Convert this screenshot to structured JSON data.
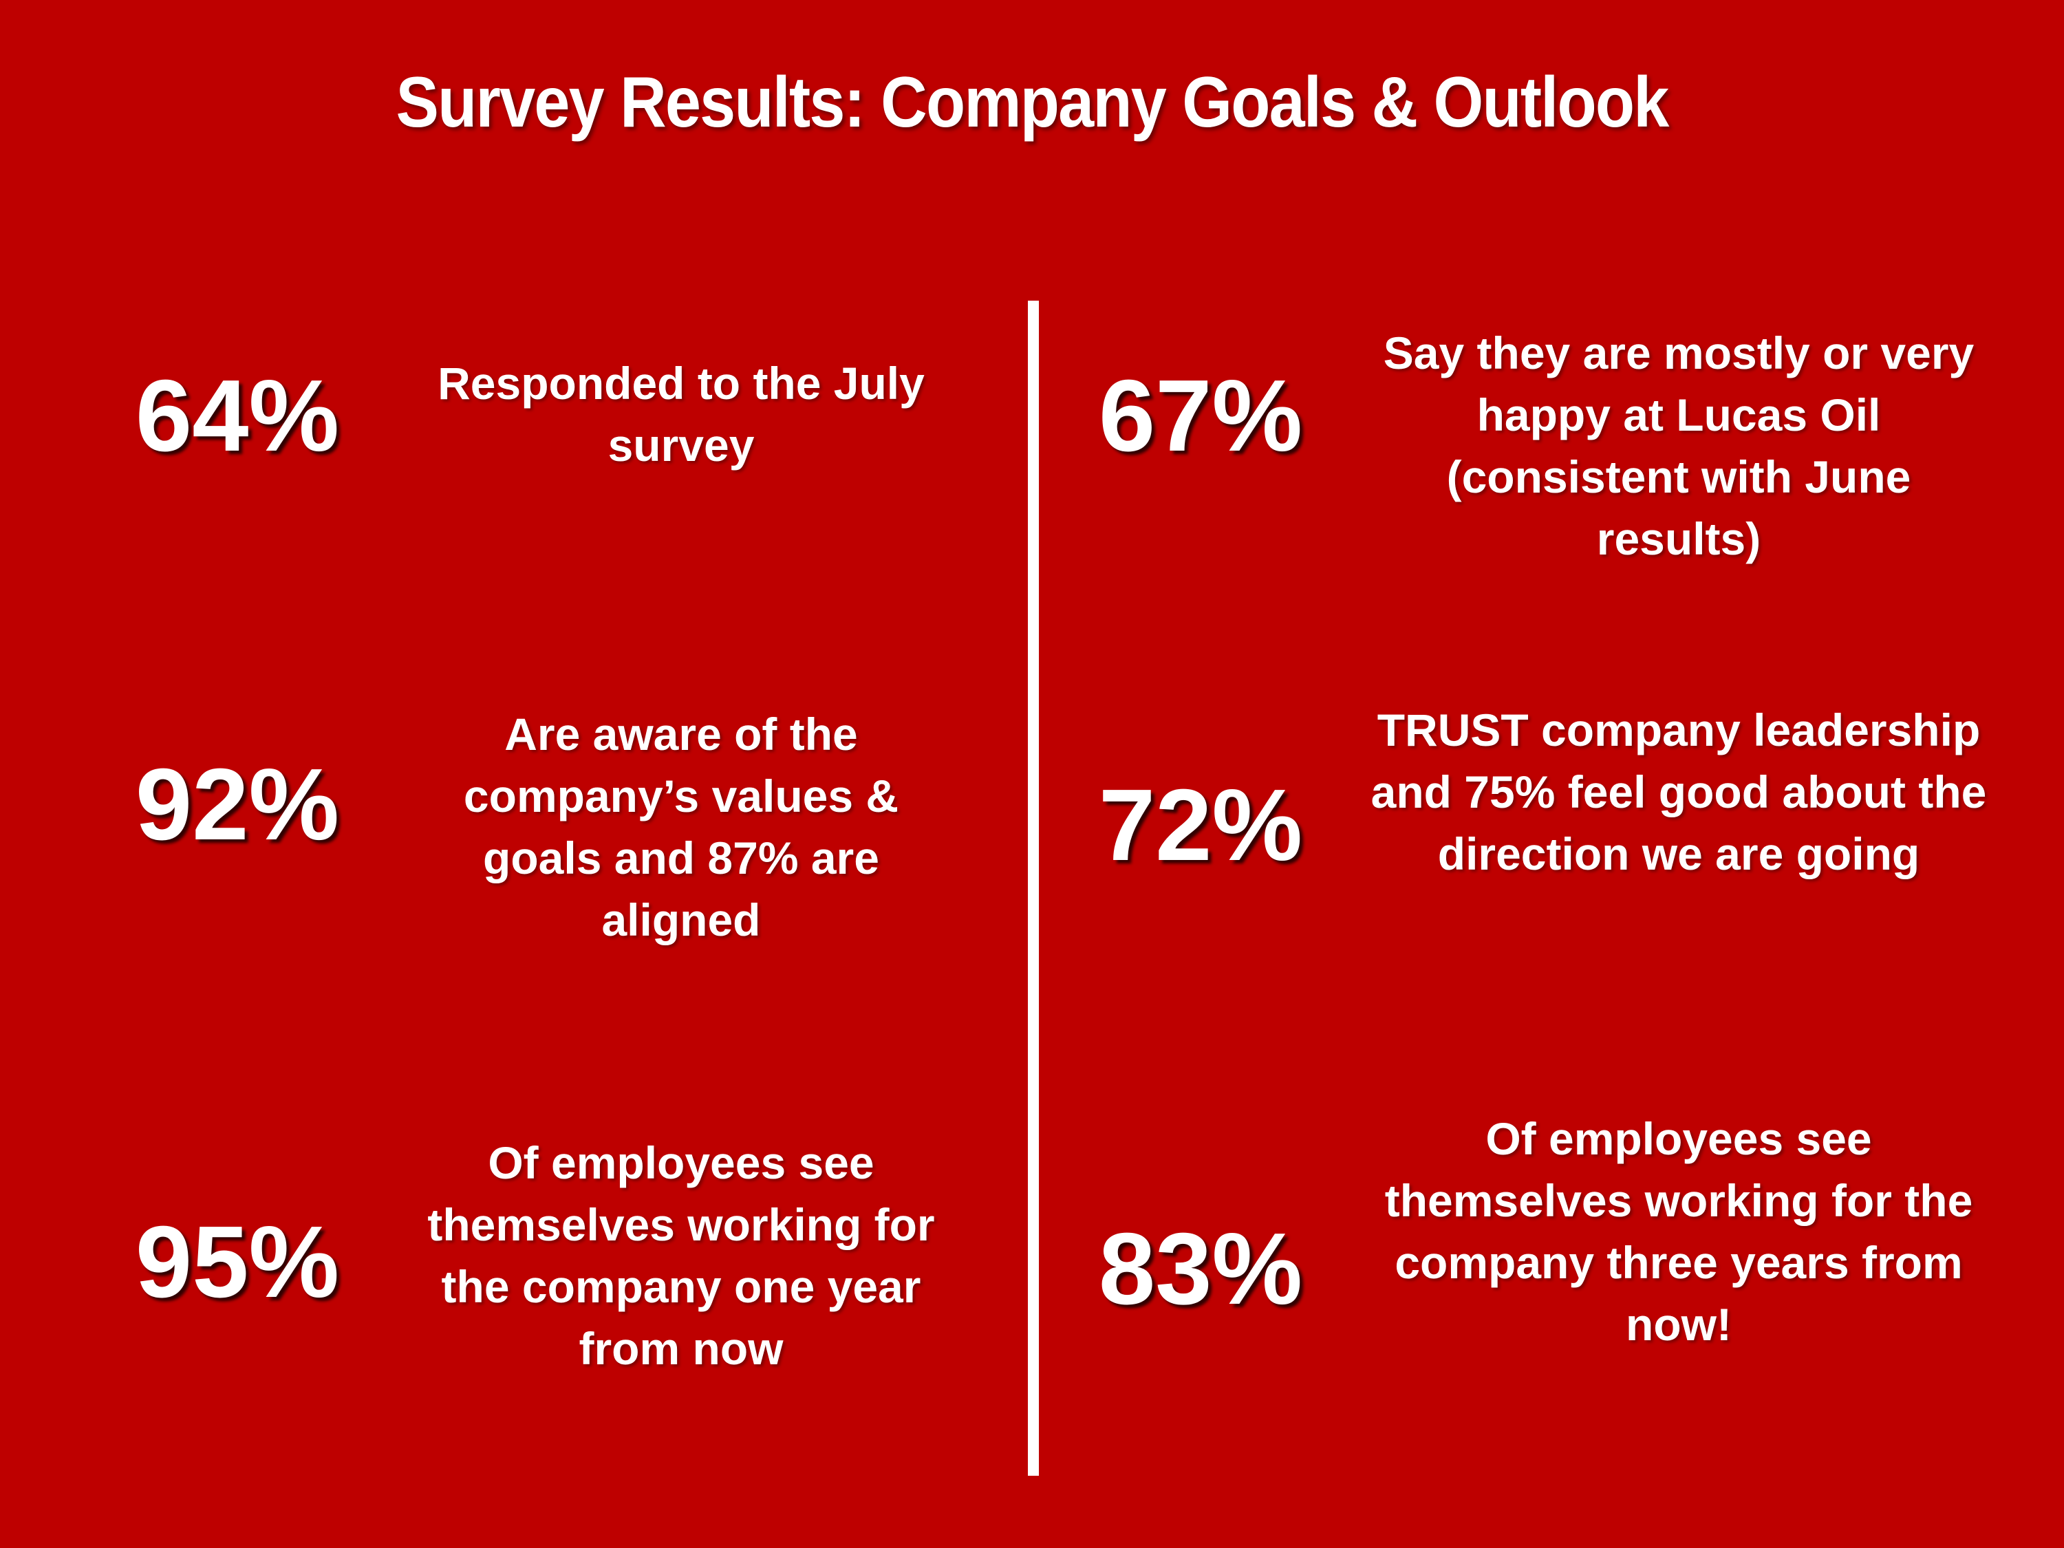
{
  "title": "Survey Results: Company Goals & Outlook",
  "stats_left": [
    {
      "percent": "64%",
      "text": "Responded to the July survey"
    },
    {
      "percent": "92%",
      "text": "Are aware of the company’s values & goals and 87% are aligned"
    },
    {
      "percent": "95%",
      "text": "Of employees see themselves working for the company one year from now"
    }
  ],
  "stats_right": [
    {
      "percent": "67%",
      "text": "Say they are mostly or very happy at Lucas Oil (consistent with June results)"
    },
    {
      "percent": "72%",
      "text": "TRUST company leadership and 75% feel good about the direction we are going"
    },
    {
      "percent": "83%",
      "text": "Of employees see themselves working for the company three years from now!"
    }
  ],
  "colors": {
    "background": "#be0000",
    "text": "#ffffff"
  }
}
